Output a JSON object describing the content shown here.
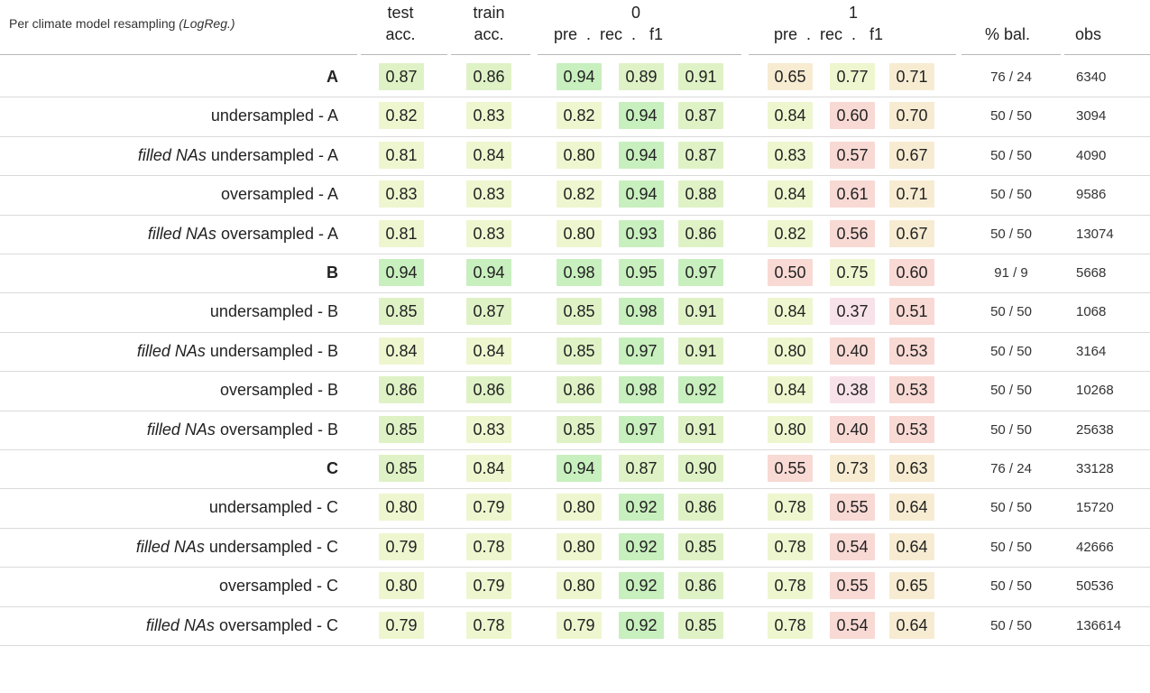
{
  "table": {
    "title_main": "Per climate model resampling ",
    "title_italic": "(LogReg.)",
    "headers": {
      "test_top": "test",
      "test_bottom": "acc.",
      "train_top": "train",
      "train_bottom": "acc.",
      "class0": "0",
      "class0_sub": "pre  .  rec  .   f1",
      "class1": "1",
      "class1_sub": "pre  .  rec  .   f1",
      "bal": "% bal.",
      "obs": "obs"
    },
    "colors": {
      "good": "#c8efbe",
      "mid_good": "#dff2c6",
      "yellow": "#eef6cf",
      "amber": "#f7ecd2",
      "red": "#f8d9d4",
      "pink": "#f8e2ea"
    },
    "rows": [
      {
        "prefix": "",
        "label": "A",
        "bold": true,
        "test": "0.87",
        "train": "0.86",
        "c0": [
          "0.94",
          "0.89",
          "0.91"
        ],
        "c1": [
          "0.65",
          "0.77",
          "0.71"
        ],
        "bal": "76 / 24",
        "obs": "6340"
      },
      {
        "prefix": "",
        "label": "undersampled - A",
        "bold": false,
        "test": "0.82",
        "train": "0.83",
        "c0": [
          "0.82",
          "0.94",
          "0.87"
        ],
        "c1": [
          "0.84",
          "0.60",
          "0.70"
        ],
        "bal": "50 / 50",
        "obs": "3094"
      },
      {
        "prefix": "filled NAs",
        "label": " undersampled - A",
        "bold": false,
        "test": "0.81",
        "train": "0.84",
        "c0": [
          "0.80",
          "0.94",
          "0.87"
        ],
        "c1": [
          "0.83",
          "0.57",
          "0.67"
        ],
        "bal": "50 / 50",
        "obs": "4090"
      },
      {
        "prefix": "",
        "label": "oversampled - A",
        "bold": false,
        "test": "0.83",
        "train": "0.83",
        "c0": [
          "0.82",
          "0.94",
          "0.88"
        ],
        "c1": [
          "0.84",
          "0.61",
          "0.71"
        ],
        "bal": "50 / 50",
        "obs": "9586"
      },
      {
        "prefix": "filled NAs",
        "label": " oversampled - A",
        "bold": false,
        "test": "0.81",
        "train": "0.83",
        "c0": [
          "0.80",
          "0.93",
          "0.86"
        ],
        "c1": [
          "0.82",
          "0.56",
          "0.67"
        ],
        "bal": "50 / 50",
        "obs": "13074"
      },
      {
        "prefix": "",
        "label": "B",
        "bold": true,
        "test": "0.94",
        "train": "0.94",
        "c0": [
          "0.98",
          "0.95",
          "0.97"
        ],
        "c1": [
          "0.50",
          "0.75",
          "0.60"
        ],
        "bal": "91 / 9",
        "obs": "5668"
      },
      {
        "prefix": "",
        "label": "undersampled - B",
        "bold": false,
        "test": "0.85",
        "train": "0.87",
        "c0": [
          "0.85",
          "0.98",
          "0.91"
        ],
        "c1": [
          "0.84",
          "0.37",
          "0.51"
        ],
        "bal": "50 / 50",
        "obs": "1068"
      },
      {
        "prefix": "filled NAs",
        "label": " undersampled - B",
        "bold": false,
        "test": "0.84",
        "train": "0.84",
        "c0": [
          "0.85",
          "0.97",
          "0.91"
        ],
        "c1": [
          "0.80",
          "0.40",
          "0.53"
        ],
        "bal": "50 / 50",
        "obs": "3164"
      },
      {
        "prefix": "",
        "label": "oversampled - B",
        "bold": false,
        "test": "0.86",
        "train": "0.86",
        "c0": [
          "0.86",
          "0.98",
          "0.92"
        ],
        "c1": [
          "0.84",
          "0.38",
          "0.53"
        ],
        "bal": "50 / 50",
        "obs": "10268"
      },
      {
        "prefix": "filled NAs",
        "label": " oversampled - B",
        "bold": false,
        "test": "0.85",
        "train": "0.83",
        "c0": [
          "0.85",
          "0.97",
          "0.91"
        ],
        "c1": [
          "0.80",
          "0.40",
          "0.53"
        ],
        "bal": "50 / 50",
        "obs": "25638"
      },
      {
        "prefix": "",
        "label": "C",
        "bold": true,
        "test": "0.85",
        "train": "0.84",
        "c0": [
          "0.94",
          "0.87",
          "0.90"
        ],
        "c1": [
          "0.55",
          "0.73",
          "0.63"
        ],
        "bal": "76 / 24",
        "obs": "33128"
      },
      {
        "prefix": "",
        "label": "undersampled - C",
        "bold": false,
        "test": "0.80",
        "train": "0.79",
        "c0": [
          "0.80",
          "0.92",
          "0.86"
        ],
        "c1": [
          "0.78",
          "0.55",
          "0.64"
        ],
        "bal": "50 / 50",
        "obs": "15720"
      },
      {
        "prefix": "filled NAs",
        "label": " undersampled - C",
        "bold": false,
        "test": "0.79",
        "train": "0.78",
        "c0": [
          "0.80",
          "0.92",
          "0.85"
        ],
        "c1": [
          "0.78",
          "0.54",
          "0.64"
        ],
        "bal": "50 / 50",
        "obs": "42666"
      },
      {
        "prefix": "",
        "label": "oversampled - C",
        "bold": false,
        "test": "0.80",
        "train": "0.79",
        "c0": [
          "0.80",
          "0.92",
          "0.86"
        ],
        "c1": [
          "0.78",
          "0.55",
          "0.65"
        ],
        "bal": "50 / 50",
        "obs": "50536"
      },
      {
        "prefix": "filled NAs",
        "label": " oversampled - C",
        "bold": false,
        "test": "0.79",
        "train": "0.78",
        "c0": [
          "0.79",
          "0.92",
          "0.85"
        ],
        "c1": [
          "0.78",
          "0.54",
          "0.64"
        ],
        "bal": "50 / 50",
        "obs": "136614"
      }
    ]
  },
  "chart_data": {
    "type": "table",
    "title": "Per climate model resampling (LogReg.)",
    "columns": [
      "test acc.",
      "train acc.",
      "0 pre",
      "0 rec",
      "0 f1",
      "1 pre",
      "1 rec",
      "1 f1",
      "% bal.",
      "obs"
    ],
    "row_labels": [
      "A",
      "undersampled - A",
      "filled NAs undersampled - A",
      "oversampled - A",
      "filled NAs oversampled - A",
      "B",
      "undersampled - B",
      "filled NAs undersampled - B",
      "oversampled - B",
      "filled NAs oversampled - B",
      "C",
      "undersampled - C",
      "filled NAs undersampled - C",
      "oversampled - C",
      "filled NAs oversampled - C"
    ]
  }
}
